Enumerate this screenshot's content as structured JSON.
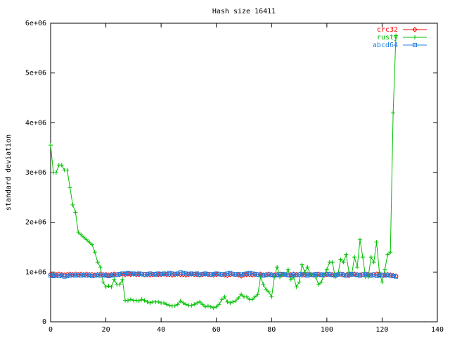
{
  "chart_data": {
    "type": "line",
    "title": "Hash size 16411",
    "y_label": "standard deviation",
    "x": [
      0,
      1,
      2,
      3,
      4,
      5,
      6,
      7,
      8,
      9,
      10,
      11,
      12,
      13,
      14,
      15,
      16,
      17,
      18,
      19,
      20,
      21,
      22,
      23,
      24,
      25,
      26,
      27,
      28,
      29,
      30,
      31,
      32,
      33,
      34,
      35,
      36,
      37,
      38,
      39,
      40,
      41,
      42,
      43,
      44,
      45,
      46,
      47,
      48,
      49,
      50,
      51,
      52,
      53,
      54,
      55,
      56,
      57,
      58,
      59,
      60,
      61,
      62,
      63,
      64,
      65,
      66,
      67,
      68,
      69,
      70,
      71,
      72,
      73,
      74,
      75,
      76,
      77,
      78,
      79,
      80,
      81,
      82,
      83,
      84,
      85,
      86,
      87,
      88,
      89,
      90,
      91,
      92,
      93,
      94,
      95,
      96,
      97,
      98,
      99,
      100,
      101,
      102,
      103,
      104,
      105,
      106,
      107,
      108,
      109,
      110,
      111,
      112,
      113,
      114,
      115,
      116,
      117,
      118,
      119,
      120,
      121,
      122,
      123,
      124,
      125
    ],
    "series": [
      {
        "name": "crc32",
        "color": "#ff0000",
        "marker": "diamond",
        "values": [
          950000,
          940000,
          950000,
          960000,
          950000,
          940000,
          950000,
          960000,
          950000,
          960000,
          950000,
          960000,
          950000,
          960000,
          950000,
          950000,
          940000,
          950000,
          960000,
          950000,
          950000,
          940000,
          950000,
          960000,
          950000,
          950000,
          960000,
          950000,
          960000,
          950000,
          960000,
          950000,
          950000,
          960000,
          950000,
          950000,
          940000,
          950000,
          960000,
          950000,
          950000,
          960000,
          950000,
          950000,
          940000,
          950000,
          960000,
          950000,
          950000,
          940000,
          950000,
          960000,
          950000,
          950000,
          940000,
          950000,
          960000,
          950000,
          950000,
          940000,
          950000,
          960000,
          950000,
          940000,
          930000,
          950000,
          960000,
          950000,
          940000,
          920000,
          940000,
          950000,
          950000,
          940000,
          950000,
          950000,
          960000,
          940000,
          950000,
          960000,
          950000,
          940000,
          950000,
          960000,
          950000,
          950000,
          940000,
          950000,
          960000,
          950000,
          950000,
          940000,
          950000,
          960000,
          950000,
          940000,
          950000,
          960000,
          950000,
          940000,
          950000,
          960000,
          950000,
          940000,
          950000,
          960000,
          950000,
          940000,
          930000,
          950000,
          960000,
          950000,
          940000,
          950000,
          960000,
          950000,
          940000,
          950000,
          960000,
          950000,
          940000,
          950000,
          950000,
          940000,
          930000,
          920000
        ]
      },
      {
        "name": "rusty",
        "color": "#00c000",
        "marker": "plus",
        "values": [
          3550000,
          3000000,
          3000000,
          3150000,
          3150000,
          3050000,
          3050000,
          2700000,
          2350000,
          2200000,
          1800000,
          1750000,
          1700000,
          1650000,
          1600000,
          1550000,
          1400000,
          1200000,
          1100000,
          800000,
          700000,
          720000,
          700000,
          850000,
          750000,
          750000,
          850000,
          430000,
          430000,
          450000,
          430000,
          430000,
          420000,
          450000,
          430000,
          400000,
          380000,
          400000,
          400000,
          400000,
          380000,
          380000,
          350000,
          330000,
          320000,
          320000,
          350000,
          420000,
          380000,
          350000,
          330000,
          330000,
          350000,
          380000,
          400000,
          350000,
          300000,
          320000,
          300000,
          280000,
          300000,
          350000,
          450000,
          500000,
          400000,
          380000,
          400000,
          420000,
          480000,
          550000,
          500000,
          500000,
          450000,
          450000,
          500000,
          550000,
          900000,
          750000,
          650000,
          600000,
          500000,
          900000,
          1100000,
          900000,
          950000,
          950000,
          1050000,
          850000,
          900000,
          700000,
          800000,
          1150000,
          1000000,
          1100000,
          950000,
          950000,
          900000,
          750000,
          800000,
          950000,
          1050000,
          1200000,
          1200000,
          900000,
          950000,
          1250000,
          1200000,
          1350000,
          1000000,
          950000,
          1300000,
          1100000,
          1650000,
          1300000,
          900000,
          900000,
          1300000,
          1200000,
          1600000,
          1000000,
          800000,
          1050000,
          1350000,
          1400000,
          4200000,
          5750000
        ]
      },
      {
        "name": "abcd64",
        "color": "#2080e0",
        "marker": "square",
        "values": [
          930000,
          920000,
          930000,
          920000,
          930000,
          910000,
          920000,
          930000,
          940000,
          930000,
          940000,
          930000,
          940000,
          930000,
          940000,
          920000,
          930000,
          940000,
          930000,
          940000,
          930000,
          920000,
          930000,
          940000,
          950000,
          960000,
          970000,
          970000,
          980000,
          970000,
          970000,
          960000,
          970000,
          960000,
          950000,
          960000,
          970000,
          960000,
          950000,
          970000,
          960000,
          970000,
          960000,
          980000,
          970000,
          960000,
          970000,
          990000,
          980000,
          970000,
          960000,
          970000,
          960000,
          970000,
          950000,
          960000,
          970000,
          960000,
          950000,
          960000,
          970000,
          960000,
          950000,
          960000,
          970000,
          980000,
          960000,
          950000,
          960000,
          950000,
          960000,
          970000,
          980000,
          970000,
          960000,
          950000,
          940000,
          930000,
          940000,
          950000,
          940000,
          930000,
          940000,
          950000,
          960000,
          950000,
          940000,
          930000,
          950000,
          940000,
          950000,
          960000,
          940000,
          930000,
          950000,
          940000,
          960000,
          950000,
          940000,
          950000,
          960000,
          950000,
          940000,
          930000,
          950000,
          960000,
          940000,
          930000,
          950000,
          960000,
          950000,
          940000,
          930000,
          950000,
          960000,
          940000,
          930000,
          950000,
          920000,
          930000,
          940000,
          930000,
          940000,
          930000,
          920000,
          910000
        ]
      }
    ],
    "xlim": [
      0,
      140
    ],
    "xticks": [
      0,
      20,
      40,
      60,
      80,
      100,
      120,
      140
    ],
    "ylim": [
      0,
      6000000
    ],
    "yticks": [
      0,
      {
        "value": 1000000,
        "label": "1e+06"
      },
      {
        "value": 2000000,
        "label": "2e+06"
      },
      {
        "value": 3000000,
        "label": "3e+06"
      },
      {
        "value": 4000000,
        "label": "4e+06"
      },
      {
        "value": 5000000,
        "label": "5e+06"
      },
      {
        "value": 6000000,
        "label": "6e+06"
      }
    ],
    "legend": "top-right"
  }
}
